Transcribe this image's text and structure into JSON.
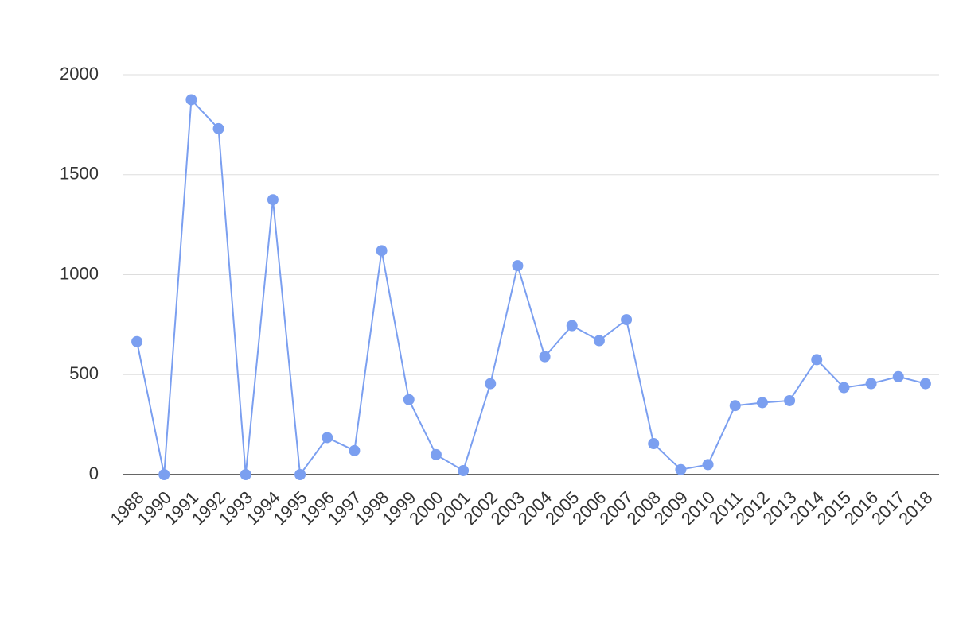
{
  "chart_data": {
    "type": "line",
    "categories": [
      "1988",
      "1990",
      "1991",
      "1992",
      "1993",
      "1994",
      "1995",
      "1996",
      "1997",
      "1998",
      "1999",
      "2000",
      "2001",
      "2002",
      "2003",
      "2004",
      "2005",
      "2006",
      "2007",
      "2008",
      "2009",
      "2010",
      "2011",
      "2012",
      "2013",
      "2014",
      "2015",
      "2016",
      "2017",
      "2018"
    ],
    "values": [
      665,
      0,
      1875,
      1730,
      0,
      1375,
      0,
      185,
      120,
      1120,
      375,
      100,
      20,
      455,
      1045,
      590,
      745,
      670,
      775,
      155,
      25,
      50,
      345,
      360,
      370,
      575,
      435,
      455,
      490,
      455
    ],
    "color": "#7b9ff0",
    "ylim": [
      0,
      2000
    ],
    "yticks": [
      0,
      500,
      1000,
      1500,
      2000
    ],
    "grid": true
  }
}
